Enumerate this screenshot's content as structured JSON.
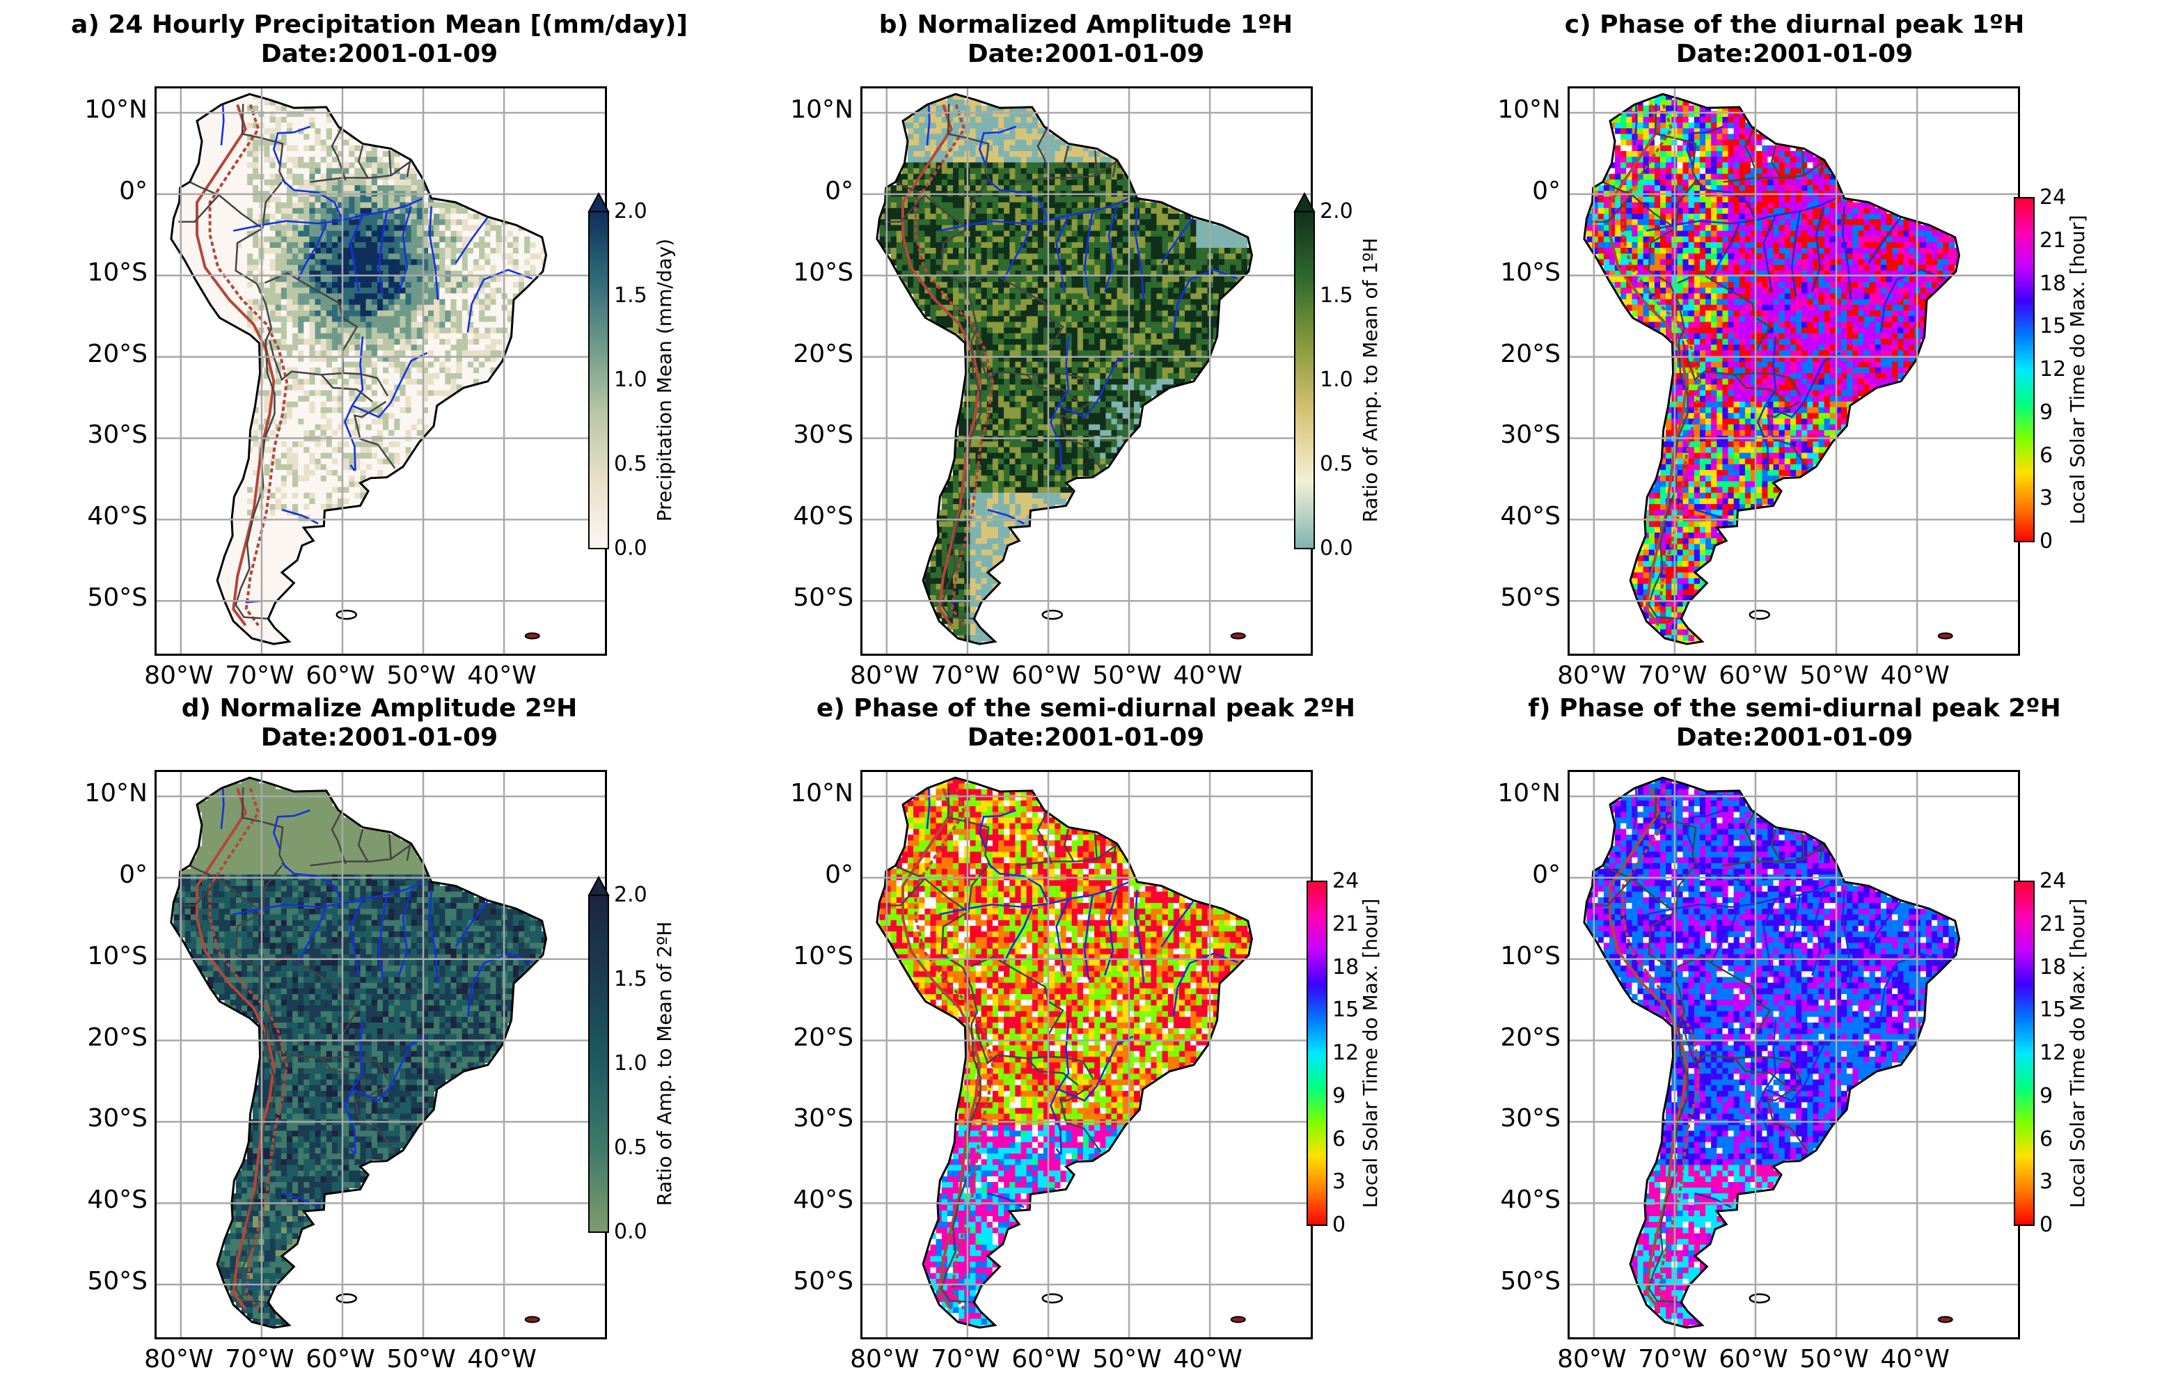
{
  "panels": [
    {
      "title": "a) 24 Hourly Precipitation Mean [(mm/day)]",
      "date": "Date:2001-01-09",
      "field": "precip-mean",
      "colorbar": {
        "label": "Precipitation Mean (mm/day)",
        "ticks": [
          "0.0",
          "0.5",
          "1.0",
          "1.5",
          "2.0"
        ],
        "extend_max": true,
        "colors": [
          "#fbf6f2",
          "#e9e0c9",
          "#b9c7a6",
          "#6f9a8a",
          "#2f6a79",
          "#0e2f5b"
        ]
      }
    },
    {
      "title": "b) Normalized Amplitude 1ºH",
      "date": "Date:2001-01-09",
      "field": "amp1",
      "colorbar": {
        "label": "Ratio of Amp. to Mean of 1ºH",
        "ticks": [
          "0.0",
          "0.5",
          "1.0",
          "1.5",
          "2.0"
        ],
        "extend_max": true,
        "colors": [
          "#7fb3b0",
          "#f4f0d6",
          "#d8c478",
          "#8a9a3c",
          "#2f6b2e",
          "#10301c"
        ]
      }
    },
    {
      "title": "c) Phase of the diurnal peak 1ºH",
      "date": "Date:2001-01-09",
      "field": "phase1",
      "colorbar": {
        "label": "Local Solar Time do Max. [hour]",
        "ticks": [
          "0",
          "3",
          "6",
          "9",
          "12",
          "15",
          "18",
          "21",
          "24"
        ],
        "extend_max": false,
        "colors": [
          "#ff0000",
          "#ff7a00",
          "#ffe000",
          "#7cff00",
          "#00ff80",
          "#00e8ff",
          "#0078ff",
          "#3c00ff",
          "#c800ff",
          "#ff00b4",
          "#ff0030"
        ]
      }
    },
    {
      "title": "d) Normalize Amplitude 2ºH",
      "date": "Date:2001-01-09",
      "field": "amp2",
      "colorbar": {
        "label": "Ratio of Amp. to Mean of 2ºH",
        "ticks": [
          "0.0",
          "0.5",
          "1.0",
          "1.5",
          "2.0"
        ],
        "extend_max": true,
        "colors": [
          "#7f9b6d",
          "#3f7a6a",
          "#1e5b61",
          "#1b3d52",
          "#1c2440"
        ]
      }
    },
    {
      "title": "e) Phase of the semi-diurnal peak 2ºH",
      "date": "Date:2001-01-09",
      "field": "phase2a",
      "colorbar": {
        "label": "Local Solar Time do Max. [hour]",
        "ticks": [
          "0",
          "3",
          "6",
          "9",
          "12",
          "15",
          "18",
          "21",
          "24"
        ],
        "extend_max": false,
        "colors": [
          "#ff0000",
          "#ff7a00",
          "#ffe000",
          "#7cff00",
          "#00ff80",
          "#00e8ff",
          "#0078ff",
          "#3c00ff",
          "#c800ff",
          "#ff00b4",
          "#ff0030"
        ]
      }
    },
    {
      "title": "f) Phase of the semi-diurnal peak 2ºH",
      "date": "Date:2001-01-09",
      "field": "phase2b",
      "colorbar": {
        "label": "Local Solar Time do Max. [hour]",
        "ticks": [
          "0",
          "3",
          "6",
          "9",
          "12",
          "15",
          "18",
          "21",
          "24"
        ],
        "extend_max": false,
        "colors": [
          "#ff0000",
          "#ff7a00",
          "#ffe000",
          "#7cff00",
          "#00ff80",
          "#00e8ff",
          "#0078ff",
          "#3c00ff",
          "#c800ff",
          "#ff00b4",
          "#ff0030"
        ]
      }
    }
  ],
  "lat_ticks": [
    "10°N",
    "0°",
    "10°S",
    "20°S",
    "30°S",
    "40°S",
    "50°S"
  ],
  "lon_ticks": [
    "80°W",
    "70°W",
    "60°W",
    "50°W",
    "40°W"
  ],
  "map_extent": {
    "lon_min": -83,
    "lon_max": -27,
    "lat_min": -57,
    "lat_max": 13
  },
  "lat_values": [
    10,
    0,
    -10,
    -20,
    -30,
    -40,
    -50
  ],
  "lon_values": [
    -80,
    -70,
    -60,
    -50,
    -40
  ]
}
